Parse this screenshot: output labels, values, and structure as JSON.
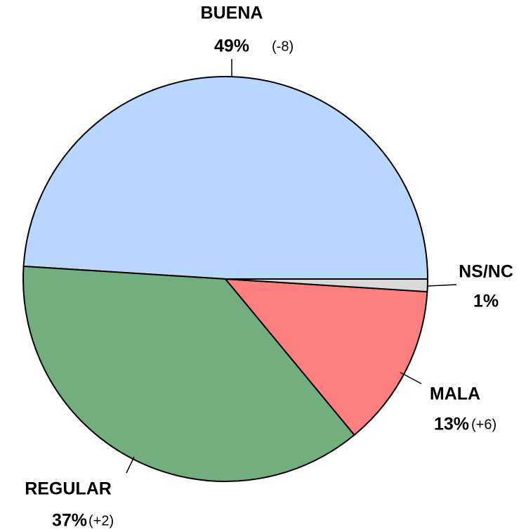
{
  "chart_data": {
    "type": "pie",
    "categories": [
      "BUENA",
      "REGULAR",
      "MALA",
      "NS/NC"
    ],
    "values": [
      49,
      37,
      13,
      1
    ],
    "value_labels": [
      "49%",
      "37%",
      "13%",
      "1%"
    ],
    "changes": [
      "(-8)",
      "(+2)",
      "(+6)",
      null
    ],
    "colors": [
      "#b9d7fc",
      "#73ae7f",
      "#fc8080",
      "#d9d9d9"
    ]
  }
}
